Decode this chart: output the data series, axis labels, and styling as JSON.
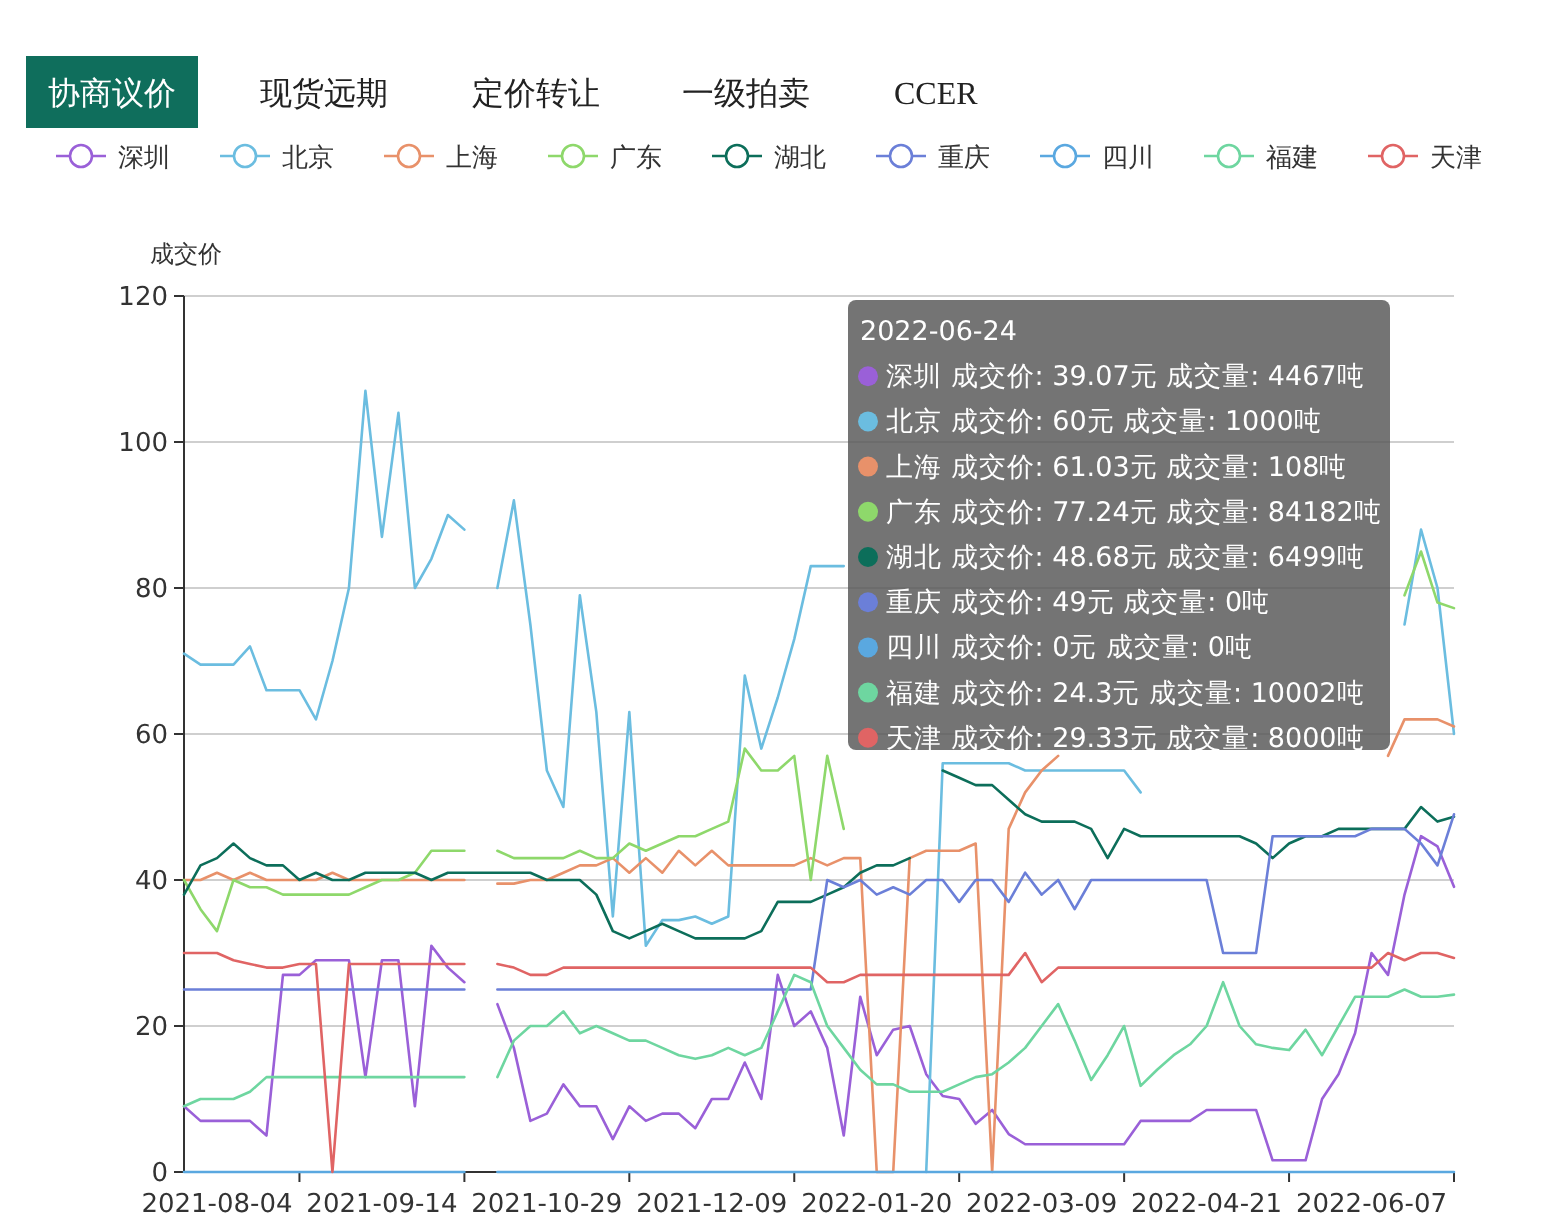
{
  "chart_data": {
    "type": "line",
    "ylabel": "成交价",
    "categories": [
      null,
      null,
      "2021-08-04",
      null,
      null,
      null,
      null,
      null,
      null,
      null,
      null,
      null,
      "2021-09-14",
      null,
      null,
      null,
      null,
      null,
      null,
      null,
      null,
      null,
      "2021-10-29",
      null,
      null,
      null,
      null,
      null,
      null,
      null,
      null,
      null,
      "2021-12-09",
      null,
      null,
      null,
      null,
      null,
      null,
      null,
      null,
      null,
      "2022-01-20",
      null,
      null,
      null,
      null,
      null,
      null,
      null,
      null,
      null,
      "2022-03-09",
      null,
      null,
      null,
      null,
      null,
      null,
      null,
      null,
      null,
      "2022-04-21",
      null,
      null,
      null,
      null,
      null,
      null,
      null,
      null,
      null,
      "2022-06-07",
      null,
      null,
      null,
      null,
      null
    ],
    "ylim": [
      0,
      120
    ],
    "yticks": [
      0,
      20,
      40,
      60,
      80,
      100,
      120
    ],
    "grid": "y",
    "legend": "top",
    "line_style": "solid",
    "series": [
      {
        "name": "深圳",
        "color": "#9a60d8",
        "values": [
          9,
          7,
          7,
          7,
          7,
          5,
          27,
          27,
          29,
          29,
          29,
          13,
          29,
          29,
          9,
          31,
          28,
          26,
          null,
          23,
          17,
          7,
          8,
          12,
          9,
          9,
          4.5,
          9,
          7,
          8,
          8,
          6,
          10,
          10,
          15,
          10,
          27,
          20,
          22,
          17,
          5,
          24,
          16,
          19.5,
          20,
          13.4,
          10.4,
          10,
          6.6,
          8.5,
          5.2,
          3.8,
          3.8,
          3.8,
          3.8,
          3.8,
          3.8,
          3.8,
          7,
          7,
          7,
          7,
          8.5,
          8.5,
          8.5,
          8.5,
          1.6,
          1.6,
          1.6,
          10,
          13.4,
          19,
          30,
          27,
          38,
          46,
          44.6,
          39.07
        ]
      },
      {
        "name": "北京",
        "color": "#6bbde0",
        "values": [
          71,
          69.5,
          69.5,
          69.5,
          72,
          66,
          66,
          66,
          62,
          70,
          80,
          107,
          87,
          104,
          80,
          84,
          90,
          88,
          null,
          80,
          92,
          75,
          55,
          50,
          79,
          63,
          35,
          63,
          31,
          34.5,
          34.5,
          35,
          34,
          35,
          68,
          58,
          65,
          73,
          83,
          83,
          83,
          null,
          null,
          null,
          null,
          0,
          56,
          56,
          56,
          56,
          56,
          55,
          55,
          55,
          55,
          55,
          55,
          55,
          52,
          null,
          null,
          null,
          null,
          null,
          null,
          null,
          null,
          null,
          null,
          null,
          null,
          null,
          null,
          null,
          75,
          88,
          80,
          60
        ]
      },
      {
        "name": "上海",
        "color": "#e8916a",
        "values": [
          40,
          40,
          41,
          40,
          41,
          40,
          40,
          40,
          40,
          41,
          40,
          40,
          40,
          40,
          40,
          40,
          40,
          40,
          null,
          39.5,
          39.5,
          40,
          40,
          41,
          42,
          42,
          43,
          41,
          43,
          41,
          44,
          42,
          44,
          42,
          42,
          42,
          42,
          42,
          43,
          42,
          43,
          43,
          0,
          0,
          43,
          44,
          44,
          44,
          45,
          0,
          47,
          52,
          55,
          57,
          null,
          null,
          null,
          null,
          null,
          null,
          null,
          null,
          null,
          null,
          null,
          null,
          null,
          null,
          null,
          null,
          null,
          null,
          null,
          57,
          62,
          62,
          62,
          61.03
        ]
      },
      {
        "name": "广东",
        "color": "#8ed86b",
        "values": [
          40,
          36,
          33,
          40,
          39,
          39,
          38,
          38,
          38,
          38,
          38,
          39,
          40,
          40,
          41,
          44,
          44,
          44,
          null,
          44,
          43,
          43,
          43,
          43,
          44,
          43,
          43,
          45,
          44,
          45,
          46,
          46,
          47,
          48,
          58,
          55,
          55,
          57,
          40,
          57,
          47,
          null,
          null,
          null,
          null,
          null,
          null,
          null,
          null,
          null,
          null,
          null,
          null,
          null,
          null,
          null,
          null,
          null,
          null,
          null,
          null,
          null,
          null,
          null,
          null,
          null,
          null,
          null,
          null,
          null,
          null,
          null,
          null,
          null,
          79,
          85,
          78,
          77.24
        ]
      },
      {
        "name": "湖北",
        "color": "#0c6e5a",
        "values": [
          38,
          42,
          43,
          45,
          43,
          42,
          42,
          40,
          41,
          40,
          40,
          41,
          41,
          41,
          41,
          40,
          41,
          41,
          41,
          41,
          41,
          41,
          40,
          40,
          40,
          38,
          33,
          32,
          33,
          34,
          33,
          32,
          32,
          32,
          32,
          33,
          37,
          37,
          37,
          38,
          39,
          41,
          42,
          42,
          43,
          null,
          55,
          54,
          53,
          53,
          51,
          49,
          48,
          48,
          48,
          47,
          43,
          47,
          46,
          46,
          46,
          46,
          46,
          46,
          46,
          45,
          43,
          45,
          46,
          46,
          47,
          47,
          47,
          47,
          47,
          50,
          48,
          48.68
        ]
      },
      {
        "name": "重庆",
        "color": "#6b7fd8",
        "values": [
          25,
          25,
          25,
          25,
          25,
          25,
          25,
          25,
          25,
          25,
          25,
          25,
          25,
          25,
          25,
          25,
          25,
          25,
          null,
          25,
          25,
          25,
          25,
          25,
          25,
          25,
          25,
          25,
          25,
          25,
          25,
          25,
          25,
          25,
          25,
          25,
          25,
          25,
          25,
          40,
          39,
          40,
          38,
          39,
          38,
          40,
          40,
          37,
          40,
          40,
          37,
          41,
          38,
          40,
          36,
          40,
          40,
          40,
          40,
          40,
          40,
          40,
          40,
          30,
          30,
          30,
          46,
          46,
          46,
          46,
          46,
          46,
          47,
          47,
          47,
          45,
          42,
          49
        ]
      },
      {
        "name": "四川",
        "color": "#5aa8e0",
        "values": [
          0,
          0,
          0,
          0,
          0,
          0,
          0,
          0,
          0,
          0,
          0,
          0,
          0,
          0,
          0,
          0,
          0,
          0,
          null,
          0,
          0,
          0,
          0,
          0,
          0,
          0,
          0,
          0,
          0,
          0,
          0,
          0,
          0,
          0,
          0,
          0,
          0,
          0,
          0,
          0,
          0,
          0,
          0,
          0,
          0,
          0,
          0,
          0,
          0,
          0,
          0,
          0,
          0,
          0,
          0,
          0,
          0,
          0,
          0,
          0,
          0,
          0,
          0,
          0,
          0,
          0,
          0,
          0,
          0,
          0,
          0,
          0,
          0,
          0,
          0,
          0,
          0,
          0
        ]
      },
      {
        "name": "福建",
        "color": "#6ed6a0",
        "values": [
          9,
          10,
          10,
          10,
          11,
          13,
          13,
          13,
          13,
          13,
          13,
          13,
          13,
          13,
          13,
          13,
          13,
          13,
          null,
          13,
          18,
          20,
          20,
          22,
          19,
          20,
          19,
          18,
          18,
          17,
          16,
          15.5,
          16,
          17,
          16,
          17,
          22,
          27,
          26,
          20,
          17,
          14,
          12,
          12,
          11,
          11,
          11,
          12,
          13,
          13.4,
          15,
          17,
          20,
          23,
          18,
          12.6,
          16,
          20,
          11.8,
          14,
          16,
          17.5,
          20,
          26,
          20,
          17.5,
          17,
          16.7,
          19.5,
          16,
          20,
          24,
          24,
          24,
          25,
          24,
          24,
          24.3
        ]
      },
      {
        "name": "天津",
        "color": "#e06464",
        "values": [
          30,
          30,
          30,
          29,
          28.5,
          28,
          28,
          28.5,
          28.5,
          0,
          28.5,
          28.5,
          28.5,
          28.5,
          28.5,
          28.5,
          28.5,
          28.5,
          null,
          28.5,
          28,
          27,
          27,
          28,
          28,
          28,
          28,
          28,
          28,
          28,
          28,
          28,
          28,
          28,
          28,
          28,
          28,
          28,
          28,
          26,
          26,
          27,
          27,
          27,
          27,
          27,
          27,
          27,
          27,
          27,
          27,
          30,
          26,
          28,
          28,
          28,
          28,
          28,
          28,
          28,
          28,
          28,
          28,
          28,
          28,
          28,
          28,
          28,
          28,
          28,
          28,
          28,
          28,
          30,
          29,
          30,
          30,
          29.33
        ]
      }
    ],
    "annotations": [
      "协商议价",
      "现货远期",
      "定价转让",
      "一级拍卖",
      "CCER",
      "2022-06-24",
      "深圳 成交价: 39.07元 成交量: 4467吨",
      "北京 成交价: 60元 成交量: 1000吨",
      "上海 成交价: 61.03元 成交量: 108吨",
      "广东 成交价: 77.24元 成交量: 84182吨",
      "湖北 成交价: 48.68元 成交量: 6499吨",
      "重庆 成交价: 49元 成交量: 0吨",
      "四川 成交价: 0元 成交量: 0吨",
      "福建 成交价: 24.3元 成交量: 10002吨",
      "天津 成交价: 29.33元 成交量: 8000吨"
    ]
  }
}
